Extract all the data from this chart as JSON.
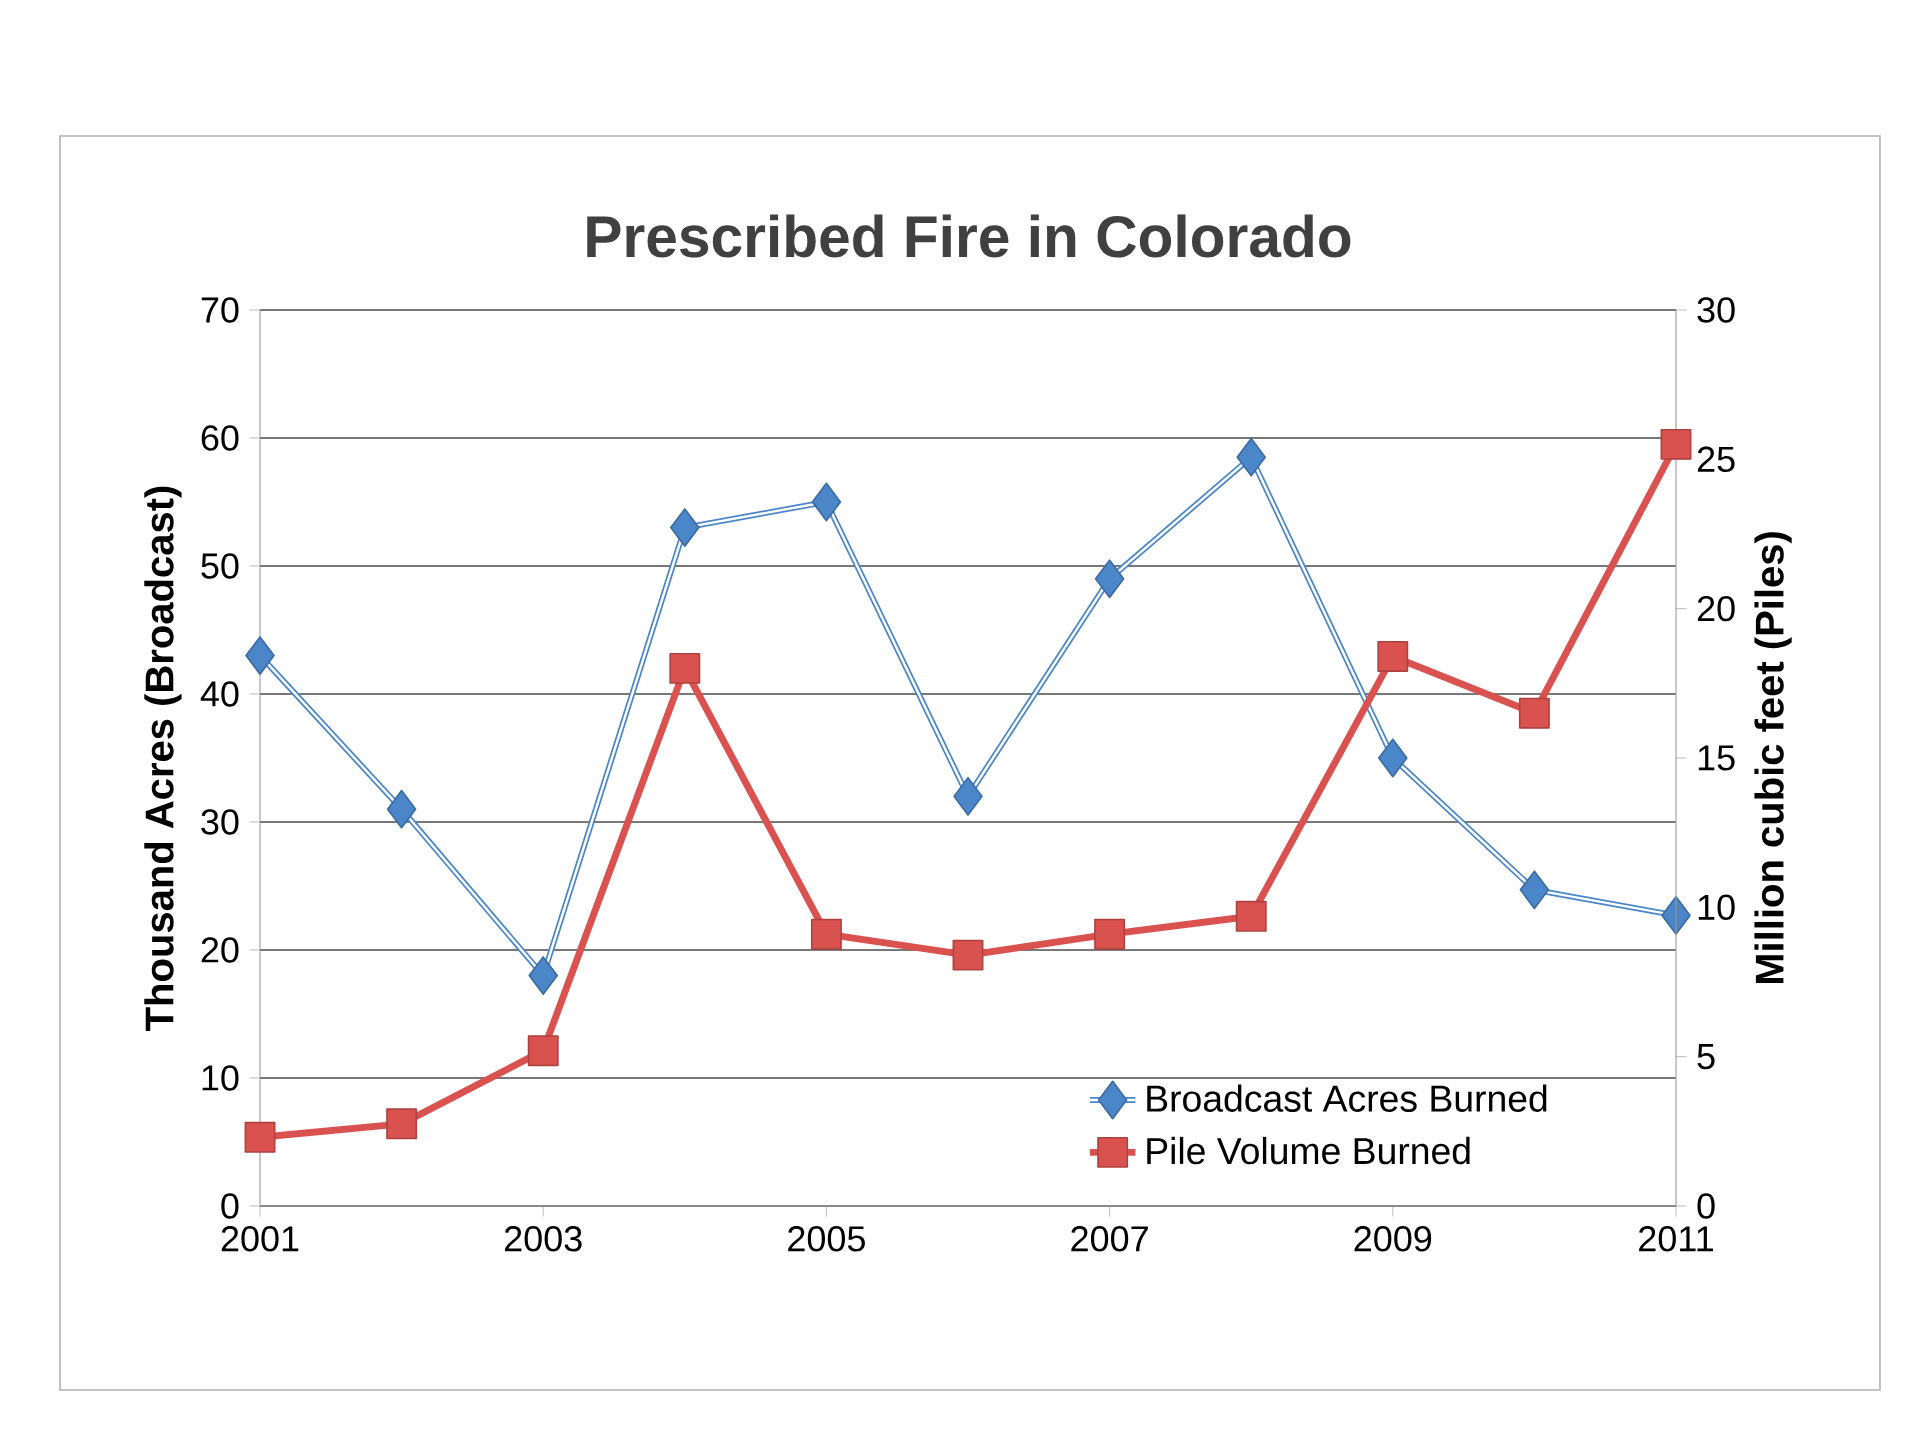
{
  "chart_data": {
    "type": "line",
    "title": "Prescribed Fire in Colorado",
    "ylabel": "Thousand Acres (Broadcast)",
    "y2label": "Million cubic feet (Piles)",
    "x": [
      2001,
      2002,
      2003,
      2004,
      2005,
      2006,
      2007,
      2008,
      2009,
      2010,
      2011
    ],
    "xlim": [
      2001,
      2011
    ],
    "xticks": [
      2001,
      2003,
      2005,
      2007,
      2009,
      2011
    ],
    "ylim": [
      0,
      70
    ],
    "yticks": [
      0,
      10,
      20,
      30,
      40,
      50,
      60,
      70
    ],
    "y2lim": [
      0,
      30
    ],
    "y2ticks": [
      0,
      5,
      10,
      15,
      20,
      25,
      30
    ],
    "grid": "y",
    "legend": "bottom right",
    "series": [
      {
        "name": "Broadcast Acres Burned",
        "color": "#4a86c8",
        "marker": "diamond",
        "values": [
          43,
          31,
          18,
          53,
          55,
          32,
          49,
          58.5,
          35,
          24.7,
          22.7
        ]
      },
      {
        "name": "Pile Volume Burned",
        "color": "#d9524f",
        "marker": "square",
        "axis": "y2",
        "values": [
          2.3,
          2.75,
          5.2,
          18,
          9.1,
          8.4,
          9.1,
          9.7,
          18.4,
          16.5,
          25.5
        ]
      }
    ]
  }
}
